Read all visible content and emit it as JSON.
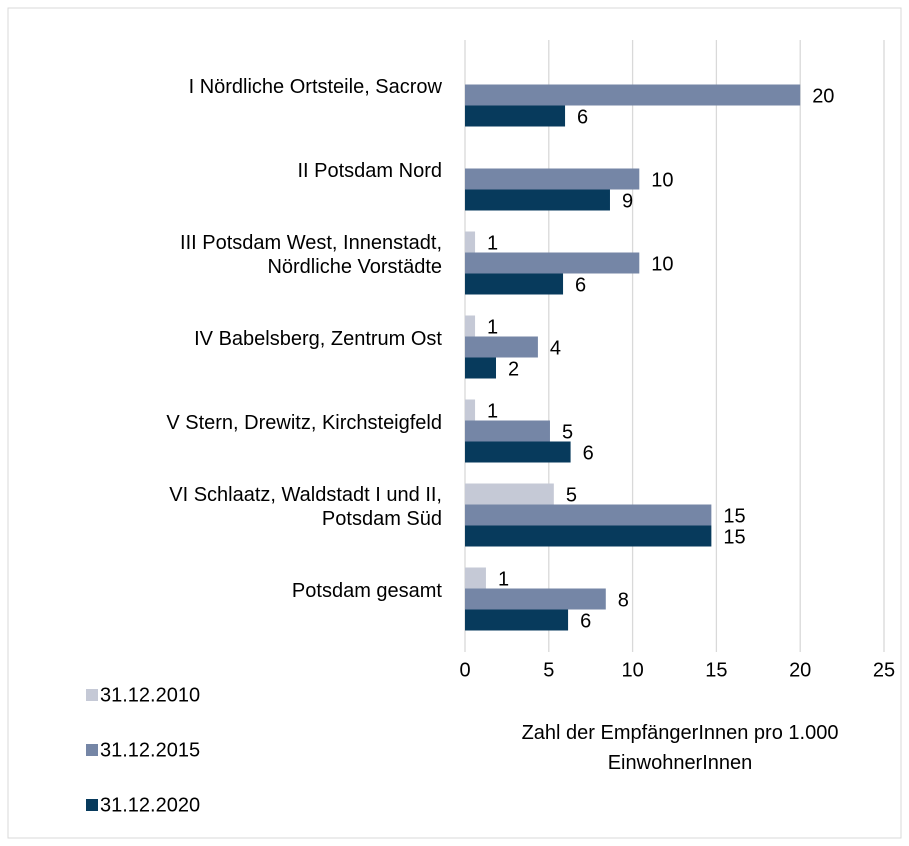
{
  "chart_data": {
    "type": "bar",
    "orientation": "horizontal",
    "categories": [
      "I Nördliche Ortsteile, Sacrow",
      "II Potsdam Nord",
      "III Potsdam West, Innenstadt,\nNördliche Vorstädte",
      "IV Babelsberg, Zentrum Ost",
      "V Stern, Drewitz, Kirchsteigfeld",
      "VI Schlaatz, Waldstadt I und II,\nPotsdam Süd",
      "Potsdam gesamt"
    ],
    "series": [
      {
        "name": "31.12.2010",
        "color": "#c5c9d6",
        "values": [
          null,
          null,
          0.6,
          0.6,
          0.6,
          5.3,
          1.25
        ],
        "value_labels": [
          null,
          null,
          "1",
          "1",
          "1",
          "5",
          "1"
        ]
      },
      {
        "name": "31.12.2015",
        "color": "#7586a6",
        "values": [
          20.0,
          10.4,
          10.4,
          4.35,
          5.07,
          14.7,
          8.4
        ],
        "value_labels": [
          "20",
          "10",
          "10",
          "4",
          "5",
          "15",
          "8"
        ]
      },
      {
        "name": "31.12.2020",
        "color": "#073a5c",
        "values": [
          5.97,
          8.65,
          5.85,
          1.85,
          6.3,
          14.7,
          6.15
        ],
        "value_labels": [
          "6",
          "9",
          "6",
          "2",
          "6",
          "15",
          "6"
        ]
      }
    ],
    "xlabel": "Zahl der EmpfängerInnen pro 1.000 EinwohnerInnen",
    "xlim": [
      0,
      25
    ],
    "xticks": [
      0,
      5,
      10,
      15,
      20,
      25
    ],
    "grid": true,
    "legend": "bottom-left"
  }
}
